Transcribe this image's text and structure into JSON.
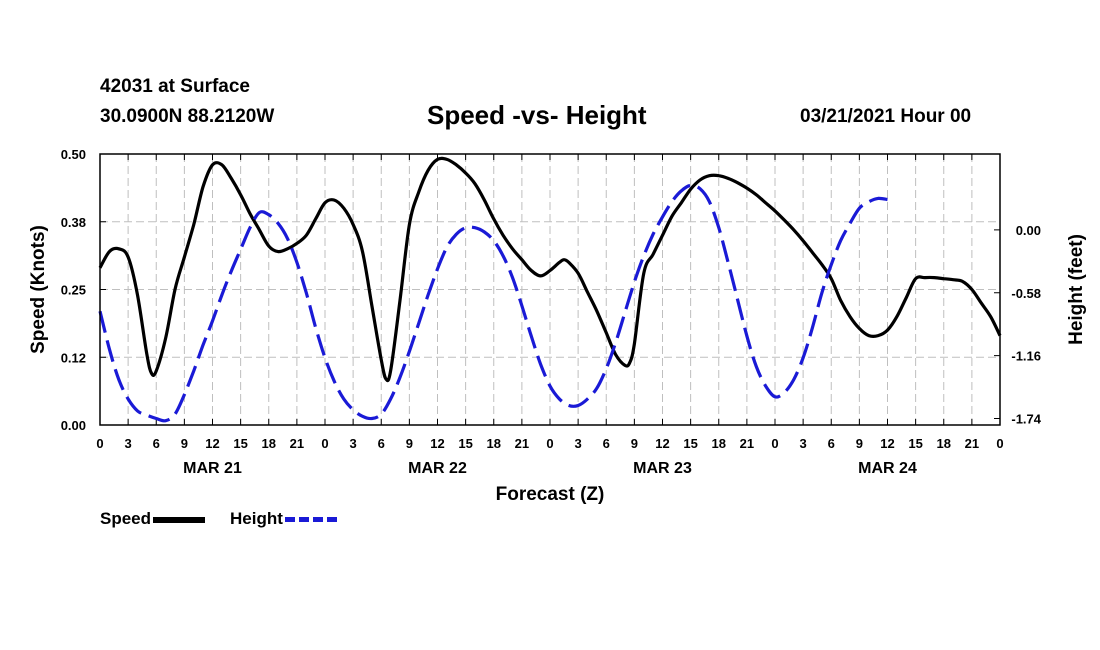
{
  "header": {
    "station": "42031 at Surface",
    "coords": "30.0900N 88.2120W",
    "title": "Speed -vs- Height",
    "time": "03/21/2021 Hour 00"
  },
  "colors": {
    "speed": "#000000",
    "height": "#1a1ad6",
    "grid": "#bfbfbf"
  },
  "chart_data": {
    "type": "line",
    "title": "Speed -vs- Height",
    "xlabel": "Forecast (Z)",
    "xlim": [
      0,
      96
    ],
    "x_ticks": [
      0,
      3,
      6,
      9,
      12,
      15,
      18,
      21,
      24,
      27,
      30,
      33,
      36,
      39,
      42,
      45,
      48,
      51,
      54,
      57,
      60,
      63,
      66,
      69,
      72,
      75,
      78,
      81,
      84,
      87,
      90,
      93,
      96
    ],
    "x_tick_labels": [
      "0",
      "3",
      "6",
      "9",
      "12",
      "15",
      "18",
      "21",
      "0",
      "3",
      "6",
      "9",
      "12",
      "15",
      "18",
      "21",
      "0",
      "3",
      "6",
      "9",
      "12",
      "15",
      "18",
      "21",
      "0",
      "3",
      "6",
      "9",
      "12",
      "15",
      "18",
      "21",
      "0"
    ],
    "day_labels": [
      {
        "label": "MAR 21",
        "x": 12
      },
      {
        "label": "MAR 22",
        "x": 36
      },
      {
        "label": "MAR 23",
        "x": 60
      },
      {
        "label": "MAR 24",
        "x": 84
      }
    ],
    "left_axis": {
      "label": "Speed (Knots)",
      "ylim": [
        0,
        0.5
      ],
      "ticks": [
        0,
        0.125,
        0.25,
        0.375,
        0.5
      ],
      "tick_labels": [
        "0.00",
        "0.12",
        "0.25",
        "0.38",
        "0.50"
      ]
    },
    "right_axis": {
      "label": "Height (feet)",
      "ylim": [
        -1.8,
        0.7
      ],
      "ticks": [
        0,
        -0.58,
        -1.16,
        -1.74
      ],
      "tick_labels": [
        "0.00",
        "-0.58",
        "-1.16",
        "-1.74"
      ]
    },
    "series": [
      {
        "name": "Speed",
        "axis": "left",
        "style": "solid",
        "points": [
          [
            0,
            0.29
          ],
          [
            1,
            0.32
          ],
          [
            2,
            0.325
          ],
          [
            3,
            0.31
          ],
          [
            4,
            0.24
          ],
          [
            5,
            0.13
          ],
          [
            5.5,
            0.095
          ],
          [
            6,
            0.1
          ],
          [
            7,
            0.16
          ],
          [
            8,
            0.25
          ],
          [
            9,
            0.31
          ],
          [
            10,
            0.37
          ],
          [
            11,
            0.44
          ],
          [
            12,
            0.48
          ],
          [
            13,
            0.48
          ],
          [
            14,
            0.455
          ],
          [
            15,
            0.425
          ],
          [
            16,
            0.39
          ],
          [
            17,
            0.36
          ],
          [
            18,
            0.33
          ],
          [
            19,
            0.32
          ],
          [
            20,
            0.325
          ],
          [
            21,
            0.335
          ],
          [
            22,
            0.35
          ],
          [
            23,
            0.38
          ],
          [
            24,
            0.41
          ],
          [
            25,
            0.415
          ],
          [
            26,
            0.4
          ],
          [
            27,
            0.37
          ],
          [
            28,
            0.32
          ],
          [
            29,
            0.22
          ],
          [
            30,
            0.12
          ],
          [
            30.5,
            0.085
          ],
          [
            31,
            0.1
          ],
          [
            32,
            0.23
          ],
          [
            33,
            0.37
          ],
          [
            34,
            0.43
          ],
          [
            35,
            0.47
          ],
          [
            36,
            0.49
          ],
          [
            37,
            0.49
          ],
          [
            38,
            0.48
          ],
          [
            39,
            0.465
          ],
          [
            40,
            0.445
          ],
          [
            41,
            0.415
          ],
          [
            42,
            0.38
          ],
          [
            43,
            0.35
          ],
          [
            44,
            0.325
          ],
          [
            45,
            0.305
          ],
          [
            46,
            0.285
          ],
          [
            47,
            0.275
          ],
          [
            48,
            0.285
          ],
          [
            49,
            0.3
          ],
          [
            49.5,
            0.305
          ],
          [
            50,
            0.3
          ],
          [
            51,
            0.28
          ],
          [
            52,
            0.245
          ],
          [
            53,
            0.21
          ],
          [
            54,
            0.17
          ],
          [
            55,
            0.13
          ],
          [
            56,
            0.11
          ],
          [
            56.5,
            0.115
          ],
          [
            57,
            0.15
          ],
          [
            58,
            0.28
          ],
          [
            59,
            0.315
          ],
          [
            60,
            0.35
          ],
          [
            61,
            0.385
          ],
          [
            62,
            0.41
          ],
          [
            63,
            0.435
          ],
          [
            64,
            0.452
          ],
          [
            65,
            0.46
          ],
          [
            66,
            0.46
          ],
          [
            67,
            0.455
          ],
          [
            68,
            0.447
          ],
          [
            69,
            0.437
          ],
          [
            70,
            0.425
          ],
          [
            71,
            0.41
          ],
          [
            72,
            0.395
          ],
          [
            73,
            0.378
          ],
          [
            74,
            0.36
          ],
          [
            75,
            0.34
          ],
          [
            76,
            0.318
          ],
          [
            77,
            0.296
          ],
          [
            78,
            0.27
          ],
          [
            79,
            0.23
          ],
          [
            80,
            0.2
          ],
          [
            81,
            0.178
          ],
          [
            82,
            0.165
          ],
          [
            83,
            0.165
          ],
          [
            84,
            0.175
          ],
          [
            85,
            0.2
          ],
          [
            86,
            0.235
          ],
          [
            87,
            0.27
          ],
          [
            88,
            0.272
          ],
          [
            89,
            0.272
          ],
          [
            90,
            0.27
          ],
          [
            91,
            0.268
          ],
          [
            92,
            0.265
          ],
          [
            93,
            0.25
          ],
          [
            94,
            0.225
          ],
          [
            95,
            0.2
          ],
          [
            96,
            0.165
          ]
        ]
      },
      {
        "name": "Height",
        "axis": "right",
        "style": "dashed",
        "points": [
          [
            0,
            -0.75
          ],
          [
            1,
            -1.1
          ],
          [
            2,
            -1.38
          ],
          [
            3,
            -1.56
          ],
          [
            4,
            -1.67
          ],
          [
            5,
            -1.71
          ],
          [
            6,
            -1.74
          ],
          [
            7,
            -1.76
          ],
          [
            8,
            -1.7
          ],
          [
            9,
            -1.52
          ],
          [
            10,
            -1.3
          ],
          [
            11,
            -1.06
          ],
          [
            12,
            -0.84
          ],
          [
            13,
            -0.6
          ],
          [
            14,
            -0.38
          ],
          [
            15,
            -0.18
          ],
          [
            16,
            0.02
          ],
          [
            17,
            0.16
          ],
          [
            18,
            0.14
          ],
          [
            19,
            0.06
          ],
          [
            20,
            -0.08
          ],
          [
            21,
            -0.3
          ],
          [
            22,
            -0.58
          ],
          [
            23,
            -0.9
          ],
          [
            24,
            -1.18
          ],
          [
            25,
            -1.4
          ],
          [
            26,
            -1.56
          ],
          [
            27,
            -1.66
          ],
          [
            28,
            -1.72
          ],
          [
            29,
            -1.74
          ],
          [
            30,
            -1.7
          ],
          [
            31,
            -1.56
          ],
          [
            32,
            -1.36
          ],
          [
            33,
            -1.12
          ],
          [
            34,
            -0.86
          ],
          [
            35,
            -0.6
          ],
          [
            36,
            -0.36
          ],
          [
            37,
            -0.16
          ],
          [
            38,
            -0.04
          ],
          [
            39,
            0.02
          ],
          [
            40,
            0.02
          ],
          [
            41,
            -0.02
          ],
          [
            42,
            -0.1
          ],
          [
            43,
            -0.24
          ],
          [
            44,
            -0.44
          ],
          [
            45,
            -0.7
          ],
          [
            46,
            -0.98
          ],
          [
            47,
            -1.24
          ],
          [
            48,
            -1.44
          ],
          [
            49,
            -1.56
          ],
          [
            50,
            -1.62
          ],
          [
            51,
            -1.62
          ],
          [
            52,
            -1.56
          ],
          [
            53,
            -1.46
          ],
          [
            54,
            -1.28
          ],
          [
            55,
            -1.04
          ],
          [
            56,
            -0.76
          ],
          [
            57,
            -0.48
          ],
          [
            58,
            -0.24
          ],
          [
            59,
            -0.04
          ],
          [
            60,
            0.12
          ],
          [
            61,
            0.26
          ],
          [
            62,
            0.36
          ],
          [
            63,
            0.41
          ],
          [
            64,
            0.38
          ],
          [
            65,
            0.26
          ],
          [
            66,
            0.02
          ],
          [
            67,
            -0.3
          ],
          [
            68,
            -0.64
          ],
          [
            69,
            -0.98
          ],
          [
            70,
            -1.26
          ],
          [
            71,
            -1.44
          ],
          [
            72,
            -1.54
          ],
          [
            73,
            -1.5
          ],
          [
            74,
            -1.38
          ],
          [
            75,
            -1.18
          ],
          [
            76,
            -0.9
          ],
          [
            77,
            -0.58
          ],
          [
            78,
            -0.32
          ],
          [
            79,
            -0.1
          ],
          [
            80,
            0.06
          ],
          [
            81,
            0.2
          ],
          [
            82,
            0.26
          ],
          [
            83,
            0.29
          ],
          [
            84,
            0.28
          ]
        ]
      }
    ],
    "legend": [
      {
        "label": "Speed"
      },
      {
        "label": "Height"
      }
    ]
  }
}
